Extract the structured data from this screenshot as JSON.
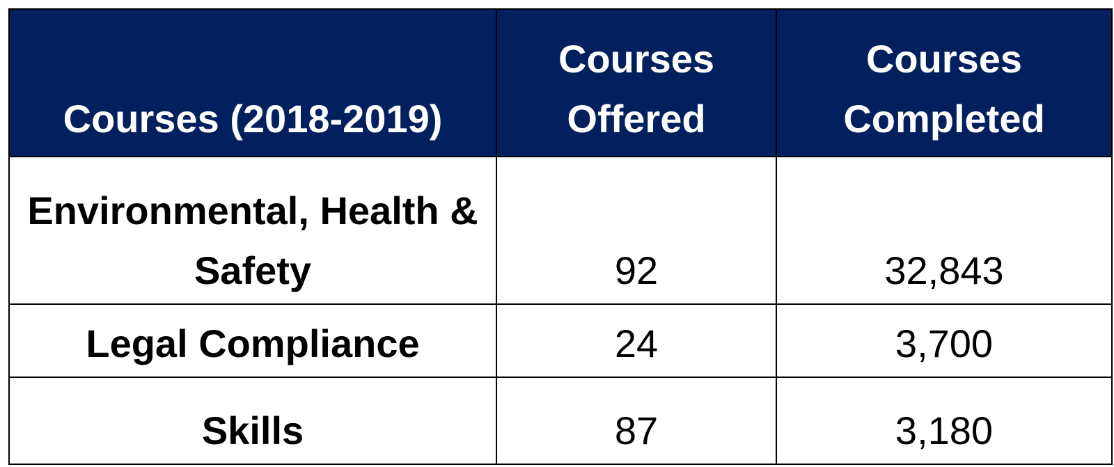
{
  "table": {
    "headers": {
      "category": "Courses (2018-2019)",
      "offered": "Courses Offered",
      "completed": "Courses Completed"
    },
    "colors": {
      "header_background": "#03205e",
      "header_text": "#ffffff",
      "body_text": "#000000",
      "border": "#000000"
    },
    "rows": [
      {
        "label": "Environmental, Health & Safety",
        "offered": "92",
        "completed": "32,843"
      },
      {
        "label": "Legal Compliance",
        "offered": "24",
        "completed": "3,700"
      },
      {
        "label": "Skills",
        "offered": "87",
        "completed": "3,180"
      }
    ]
  }
}
